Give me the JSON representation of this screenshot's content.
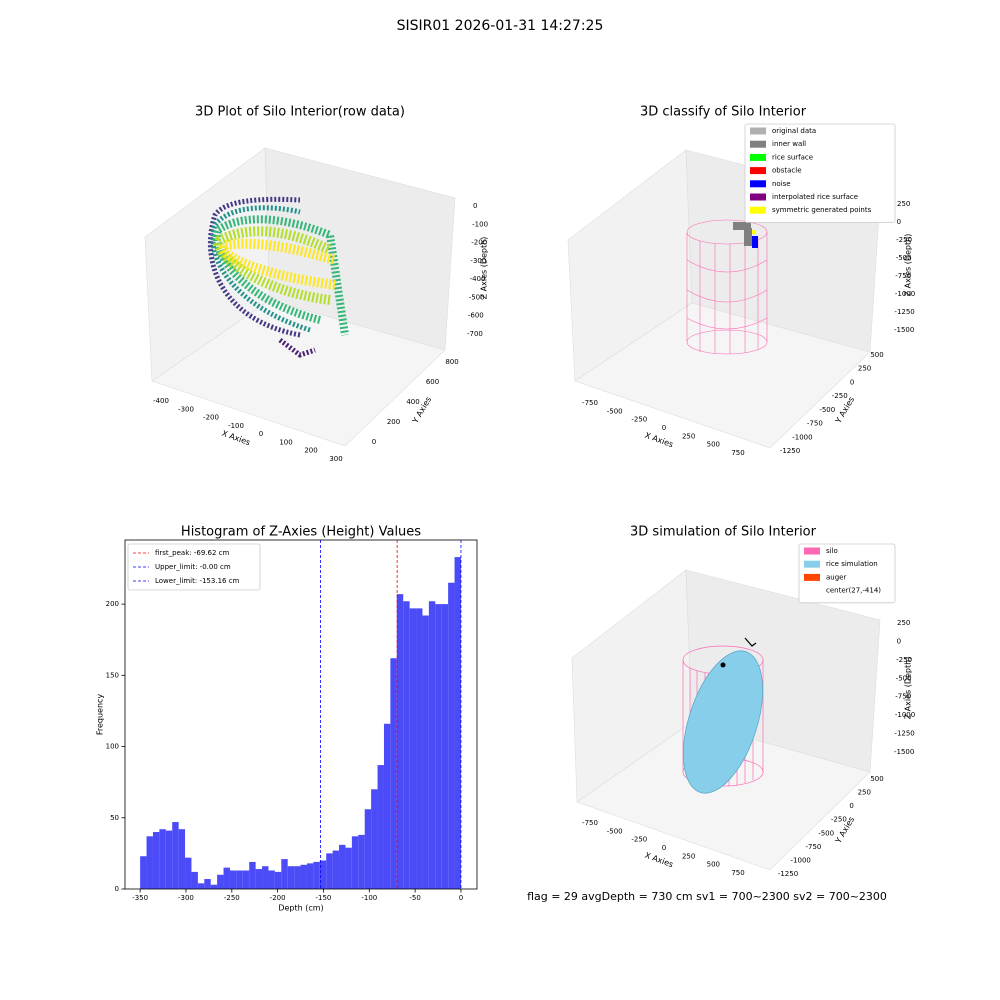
{
  "title": "SISIR01 2026-01-31 14:27:25",
  "footer": "flag = 29  avgDepth = 730 cm  sv1 = 700~2300  sv2 = 700~2300",
  "chart_data": [
    {
      "type": "scatter3d",
      "title": "3D Plot of Silo Interior(row data)",
      "xlabel": "X Axies",
      "ylabel": "Y Axies",
      "zlabel": "Z Axies (Depth)",
      "xticks": [
        -400,
        -300,
        -200,
        -100,
        0,
        100,
        200,
        300
      ],
      "yticks": [
        0,
        200,
        400,
        600,
        800
      ],
      "zticks": [
        -700,
        -600,
        -500,
        -400,
        -300,
        -200,
        -100,
        0
      ]
    },
    {
      "type": "scatter3d",
      "title": "3D classify of Silo Interior",
      "xlabel": "X Axies",
      "ylabel": "Y Axies",
      "zlabel": "Z Axies (Depth)",
      "xticks": [
        -750,
        -500,
        -250,
        0,
        250,
        500,
        750
      ],
      "yticks": [
        -1250,
        -1000,
        -750,
        -500,
        -250,
        0,
        250,
        500
      ],
      "zticks": [
        -1500,
        -1250,
        -1000,
        -750,
        -500,
        -250,
        0,
        250
      ],
      "legend": [
        {
          "name": "original data",
          "color": "#b0b0b0"
        },
        {
          "name": "inner wall",
          "color": "#808080"
        },
        {
          "name": "rice surface",
          "color": "#00ff00"
        },
        {
          "name": "obstacle",
          "color": "#ff0000"
        },
        {
          "name": "noise",
          "color": "#0000ff"
        },
        {
          "name": "interpolated rice surface",
          "color": "#800080"
        },
        {
          "name": "symmetric generated points",
          "color": "#ffff00"
        }
      ]
    },
    {
      "type": "histogram",
      "title": "Histogram of Z-Axies (Height) Values",
      "xlabel": "Depth (cm)",
      "ylabel": "Frequency",
      "color": "#4b4bf7",
      "bins": [
        -350,
        -343,
        -336,
        -329,
        -322,
        -315,
        -308,
        -301,
        -294,
        -287,
        -280,
        -273,
        -266,
        -259,
        -252,
        -245,
        -238,
        -231,
        -224,
        -217,
        -210,
        -203,
        -196,
        -189,
        -182,
        -175,
        -168,
        -161,
        -154,
        -147,
        -140,
        -133,
        -126,
        -119,
        -112,
        -105,
        -98,
        -91,
        -84,
        -77,
        -70,
        -63,
        -56,
        -49,
        -42,
        -35,
        -28,
        -21,
        -14,
        -7,
        0
      ],
      "values": [
        23,
        37,
        40,
        42,
        41,
        47,
        42,
        22,
        12,
        4,
        7,
        3,
        10,
        15,
        13,
        13,
        13,
        19,
        14,
        16,
        13,
        12,
        21,
        16,
        16,
        17,
        18,
        19,
        20,
        25,
        27,
        31,
        29,
        37,
        38,
        56,
        70,
        87,
        116,
        162,
        207,
        202,
        197,
        197,
        192,
        202,
        200,
        200,
        215,
        233
      ],
      "xlim": [
        -366.5,
        17.5
      ],
      "ylim": [
        0,
        245
      ],
      "xticks": [
        -350,
        -300,
        -250,
        -200,
        -150,
        -100,
        -50,
        0
      ],
      "yticks": [
        0,
        50,
        100,
        150,
        200
      ],
      "lines": [
        {
          "name": "first_peak: -69.62 cm",
          "value": -69.62,
          "color": "#ff0000"
        },
        {
          "name": "Upper_limit: -0.00 cm",
          "value": 0,
          "color": "#0000ff"
        },
        {
          "name": "Lower_limit: -153.16 cm",
          "value": -153.16,
          "color": "#0000ff"
        }
      ],
      "legend": "upper left"
    },
    {
      "type": "surface3d",
      "title": "3D simulation of Silo Interior",
      "xlabel": "X Axies",
      "ylabel": "Y Axies",
      "zlabel": "Z Axies (Depth)",
      "xticks": [
        -750,
        -500,
        -250,
        0,
        250,
        500,
        750
      ],
      "yticks": [
        -1250,
        -1000,
        -750,
        -500,
        -250,
        0,
        250,
        500
      ],
      "zticks": [
        -1500,
        -1250,
        -1000,
        -750,
        -500,
        -250,
        0,
        250
      ],
      "legend": [
        {
          "name": "silo",
          "color": "#ff69b4"
        },
        {
          "name": "rice simulation",
          "color": "#87ceeb"
        },
        {
          "name": "auger",
          "color": "#ff4500"
        },
        {
          "name": "center(27,-414)"
        }
      ]
    }
  ]
}
